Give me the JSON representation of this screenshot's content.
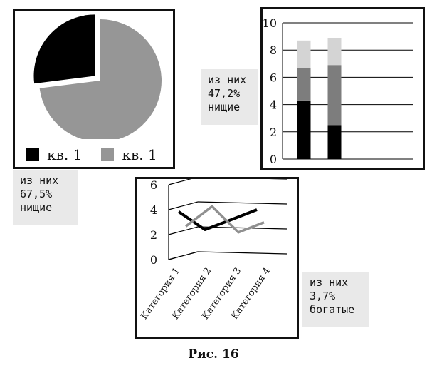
{
  "chart_data": [
    {
      "type": "pie",
      "slices": [
        {
          "label": "кв. 1",
          "value": 27,
          "color": "#000000",
          "exploded": true
        },
        {
          "label": "кв. 1",
          "value": 73,
          "color": "#969696"
        }
      ],
      "legend": [
        "кв. 1",
        "кв. 1"
      ]
    },
    {
      "type": "bar",
      "stacked": true,
      "categories": [
        "",
        ""
      ],
      "series": [
        {
          "values": [
            4.3,
            2.5
          ],
          "color": "#000000"
        },
        {
          "values": [
            2.4,
            4.4
          ],
          "color": "#7d7d7d"
        },
        {
          "values": [
            2.0,
            2.0
          ],
          "color": "#d4d4d4"
        }
      ],
      "ylim": [
        0,
        10
      ],
      "yticks": [
        "0",
        "2",
        "4",
        "6",
        "8",
        "10"
      ],
      "grid": true
    },
    {
      "type": "line",
      "categories": [
        "Категория 1",
        "Категория 2",
        "Категория 3",
        "Категория 4"
      ],
      "series": [
        {
          "values": [
            4.3,
            2.5,
            3.5,
            4.5
          ],
          "color": "#000000"
        },
        {
          "values": [
            2.4,
            4.4,
            1.8,
            2.8
          ],
          "color": "#909090"
        }
      ],
      "ylim": [
        0,
        6
      ],
      "yticks": [
        "0",
        "2",
        "4",
        "6"
      ],
      "grid": true,
      "perspective": "3d"
    }
  ],
  "notes": {
    "note1": [
      "из них",
      "67,5%",
      "нищие"
    ],
    "note2": [
      "из них",
      "47,2%",
      "нищие"
    ],
    "note3": [
      "из них",
      "3,7%",
      "богатые"
    ]
  },
  "figure_caption": "Рис. 16"
}
